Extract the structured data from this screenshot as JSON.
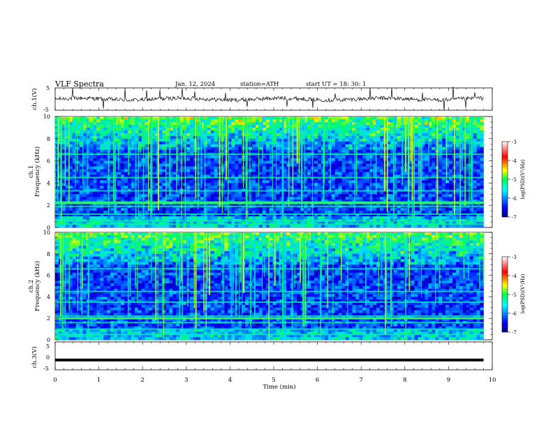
{
  "header": {
    "title": "VLF  Spectra",
    "date": "Jan. 12, 2024",
    "station": "station=ATH",
    "start": "start  UT  =    18: 30: 1"
  },
  "chart_data": [
    {
      "id": "ch1-waveform",
      "type": "line",
      "ylabel": "ch.1(V)",
      "ylim": [
        -5,
        5
      ],
      "y_ticks": [
        "5",
        "-5"
      ],
      "xlim": [
        0,
        10
      ],
      "color": "#000000",
      "noise_level": 0.3,
      "spike_times": [
        0.4,
        1.1,
        1.6,
        2.1,
        2.4,
        2.9,
        3.2,
        3.9,
        4.4,
        5.3,
        5.9,
        6.4,
        7.2,
        7.7,
        8.4,
        8.9,
        9.1,
        9.4,
        9.6
      ],
      "visible_text": []
    },
    {
      "id": "ch1-spectrogram",
      "type": "heatmap",
      "ylabel": "Frequency (kHz)",
      "channel_label": "ch.1",
      "xlim": [
        0,
        9.8
      ],
      "ylim": [
        0,
        10
      ],
      "y_ticks": [
        "0",
        "2",
        "4",
        "6",
        "8",
        "10"
      ],
      "colorbar": {
        "label": "log(PSD)(V²/Hz)",
        "ticks": [
          "-3",
          "-4",
          "-5",
          "-6",
          "-7"
        ],
        "range": [
          -7,
          -3
        ]
      },
      "bands_khz": [
        0.3,
        0.6,
        1.2,
        1.9,
        2.3,
        3.3,
        4.5,
        6.6
      ],
      "tone_khz": 2.2,
      "sferic_density": 0.55
    },
    {
      "id": "ch2-spectrogram",
      "type": "heatmap",
      "ylabel": "Frequency (kHz)",
      "channel_label": "ch.2",
      "xlim": [
        0,
        9.8
      ],
      "ylim": [
        0,
        10
      ],
      "y_ticks": [
        "0",
        "2",
        "4",
        "6",
        "8",
        "10"
      ],
      "colorbar": {
        "label": "log(PSD)(V²/Hz)",
        "ticks": [
          "-3",
          "-4",
          "-5",
          "-6",
          "-7"
        ],
        "range": [
          -7,
          -3
        ]
      },
      "bands_khz": [
        0.5,
        1.0,
        1.6,
        2.0,
        2.2,
        3.5,
        4.5,
        6.6
      ],
      "tone_khz": 2.0,
      "sferic_density": 0.5
    },
    {
      "id": "ch3-waveform",
      "type": "line",
      "ylabel": "ch.3(V)",
      "ylim": [
        -5,
        5
      ],
      "y_ticks": [
        "5",
        "0",
        "-5"
      ],
      "xlim": [
        0,
        10
      ],
      "level": -1.5,
      "xlabel": "Time  (min)",
      "x_ticks": [
        "0",
        "1",
        "2",
        "3",
        "4",
        "5",
        "6",
        "7",
        "8",
        "9",
        "10"
      ]
    }
  ]
}
